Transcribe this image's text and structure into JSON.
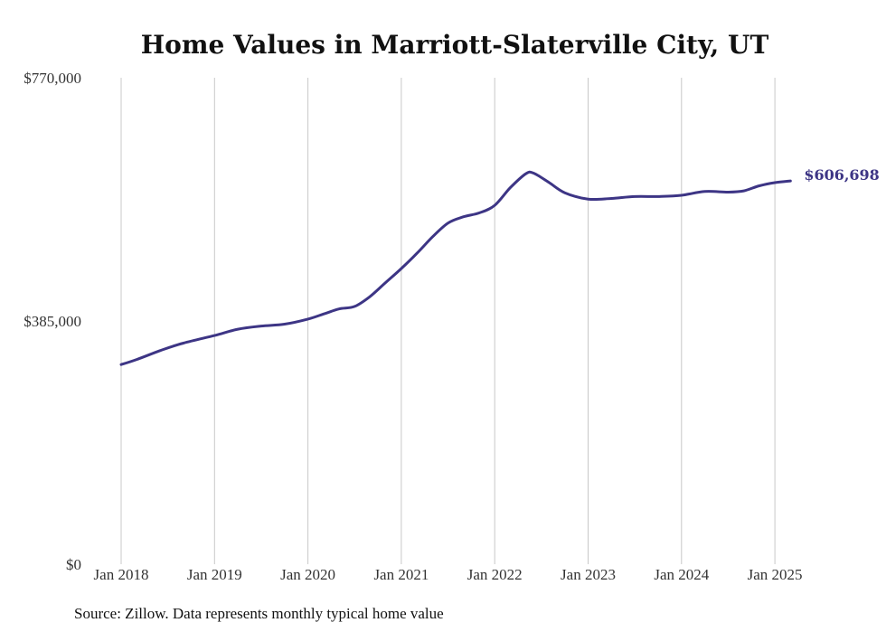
{
  "chart_data": {
    "type": "line",
    "title": "Home Values in Marriott-Slaterville City, UT",
    "xlabel": "",
    "ylabel": "",
    "source": "Source: Zillow. Data represents monthly typical home value",
    "ylim": [
      0,
      770000
    ],
    "xlim": [
      "2018-01",
      "2025-03"
    ],
    "y_ticks": [
      {
        "value": 0,
        "label": "$0"
      },
      {
        "value": 385000,
        "label": "$385,000"
      },
      {
        "value": 770000,
        "label": "$770,000"
      }
    ],
    "x_ticks": [
      {
        "date": "2018-01",
        "label": "Jan 2018"
      },
      {
        "date": "2019-01",
        "label": "Jan 2019"
      },
      {
        "date": "2020-01",
        "label": "Jan 2020"
      },
      {
        "date": "2021-01",
        "label": "Jan 2021"
      },
      {
        "date": "2022-01",
        "label": "Jan 2022"
      },
      {
        "date": "2023-01",
        "label": "Jan 2023"
      },
      {
        "date": "2024-01",
        "label": "Jan 2024"
      },
      {
        "date": "2025-01",
        "label": "Jan 2025"
      }
    ],
    "grid": {
      "vertical": true,
      "horizontal": false
    },
    "series": [
      {
        "color": "#3d3585",
        "end_label": "$606,698",
        "points": [
          {
            "x": "2018-01",
            "y": 316000
          },
          {
            "x": "2018-03",
            "y": 324000
          },
          {
            "x": "2018-06",
            "y": 338000
          },
          {
            "x": "2018-09",
            "y": 350000
          },
          {
            "x": "2019-01",
            "y": 362000
          },
          {
            "x": "2019-04",
            "y": 372000
          },
          {
            "x": "2019-07",
            "y": 377000
          },
          {
            "x": "2019-10",
            "y": 380000
          },
          {
            "x": "2020-01",
            "y": 388000
          },
          {
            "x": "2020-03",
            "y": 396000
          },
          {
            "x": "2020-05",
            "y": 404000
          },
          {
            "x": "2020-07",
            "y": 408000
          },
          {
            "x": "2020-09",
            "y": 424000
          },
          {
            "x": "2020-11",
            "y": 446000
          },
          {
            "x": "2021-01",
            "y": 468000
          },
          {
            "x": "2021-03",
            "y": 492000
          },
          {
            "x": "2021-05",
            "y": 518000
          },
          {
            "x": "2021-07",
            "y": 540000
          },
          {
            "x": "2021-09",
            "y": 550000
          },
          {
            "x": "2021-11",
            "y": 556000
          },
          {
            "x": "2022-01",
            "y": 568000
          },
          {
            "x": "2022-03",
            "y": 596000
          },
          {
            "x": "2022-05",
            "y": 618000
          },
          {
            "x": "2022-06",
            "y": 619000
          },
          {
            "x": "2022-08",
            "y": 604000
          },
          {
            "x": "2022-10",
            "y": 588000
          },
          {
            "x": "2023-01",
            "y": 578000
          },
          {
            "x": "2023-04",
            "y": 579000
          },
          {
            "x": "2023-07",
            "y": 582000
          },
          {
            "x": "2023-10",
            "y": 582000
          },
          {
            "x": "2024-01",
            "y": 584000
          },
          {
            "x": "2024-04",
            "y": 590000
          },
          {
            "x": "2024-07",
            "y": 589000
          },
          {
            "x": "2024-09",
            "y": 591000
          },
          {
            "x": "2024-11",
            "y": 599000
          },
          {
            "x": "2025-01",
            "y": 604000
          },
          {
            "x": "2025-03",
            "y": 606698
          }
        ]
      }
    ]
  }
}
